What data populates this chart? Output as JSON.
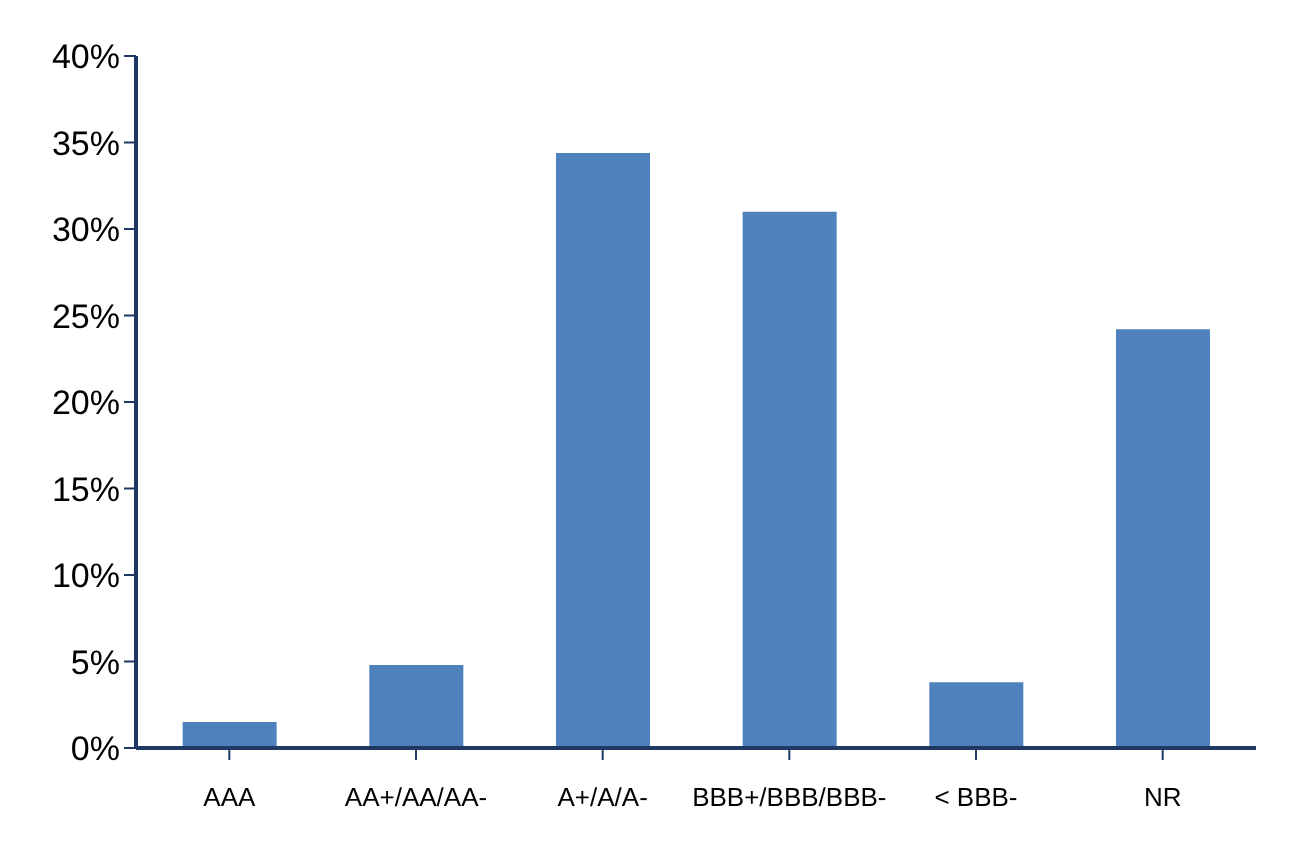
{
  "chart_data": {
    "type": "bar",
    "categories": [
      "AAA",
      "AA+/AA/AA-",
      "A+/A/A-",
      "BBB+/BBB/BBB-",
      "< BBB-",
      "NR"
    ],
    "values": [
      1.5,
      4.8,
      34.4,
      31.0,
      3.8,
      24.2
    ],
    "color": "#4f81bd",
    "ylim": [
      0,
      40
    ],
    "yticks": [
      {
        "value": 0,
        "label": "0%"
      },
      {
        "value": 5,
        "label": "5%"
      },
      {
        "value": 10,
        "label": "10%"
      },
      {
        "value": 15,
        "label": "15%"
      },
      {
        "value": 20,
        "label": "20%"
      },
      {
        "value": 25,
        "label": "25%"
      },
      {
        "value": 30,
        "label": "30%"
      },
      {
        "value": 35,
        "label": "35%"
      },
      {
        "value": 40,
        "label": "40%"
      }
    ],
    "grid": false,
    "legend": false
  }
}
